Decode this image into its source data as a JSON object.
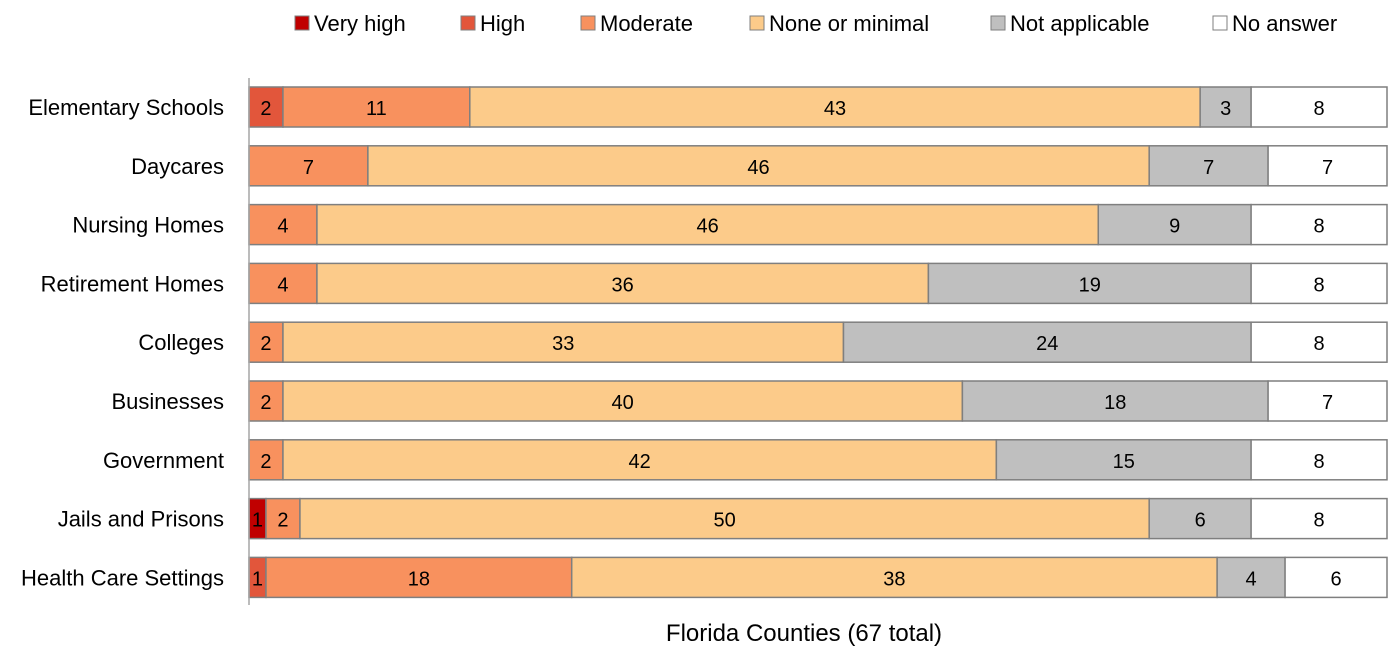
{
  "chart_data": {
    "type": "bar",
    "orientation": "horizontal",
    "stacked": true,
    "xlabel": "Florida Counties (67 total)",
    "ylabel": "",
    "xlim": [
      0,
      67
    ],
    "grid": false,
    "legend_position": "top",
    "categories": [
      "Elementary Schools",
      "Daycares",
      "Nursing Homes",
      "Retirement Homes",
      "Colleges",
      "Businesses",
      "Government",
      "Jails and Prisons",
      "Health Care Settings"
    ],
    "series": [
      {
        "name": "Very high",
        "color": "#c00000",
        "values": [
          0,
          0,
          0,
          0,
          0,
          0,
          0,
          1,
          0
        ]
      },
      {
        "name": "High",
        "color": "#e2563b",
        "values": [
          2,
          0,
          0,
          0,
          0,
          0,
          0,
          0,
          1
        ]
      },
      {
        "name": "Moderate",
        "color": "#f8915e",
        "values": [
          11,
          7,
          4,
          4,
          2,
          2,
          2,
          2,
          18
        ]
      },
      {
        "name": "None or minimal",
        "color": "#fccb8a",
        "values": [
          43,
          46,
          46,
          36,
          33,
          40,
          42,
          50,
          38
        ]
      },
      {
        "name": "Not applicable",
        "color": "#bfbfbf",
        "values": [
          3,
          7,
          9,
          19,
          24,
          18,
          15,
          6,
          4
        ]
      },
      {
        "name": "No answer",
        "color": "#ffffff",
        "values": [
          8,
          7,
          8,
          8,
          8,
          7,
          8,
          8,
          6
        ]
      }
    ]
  }
}
